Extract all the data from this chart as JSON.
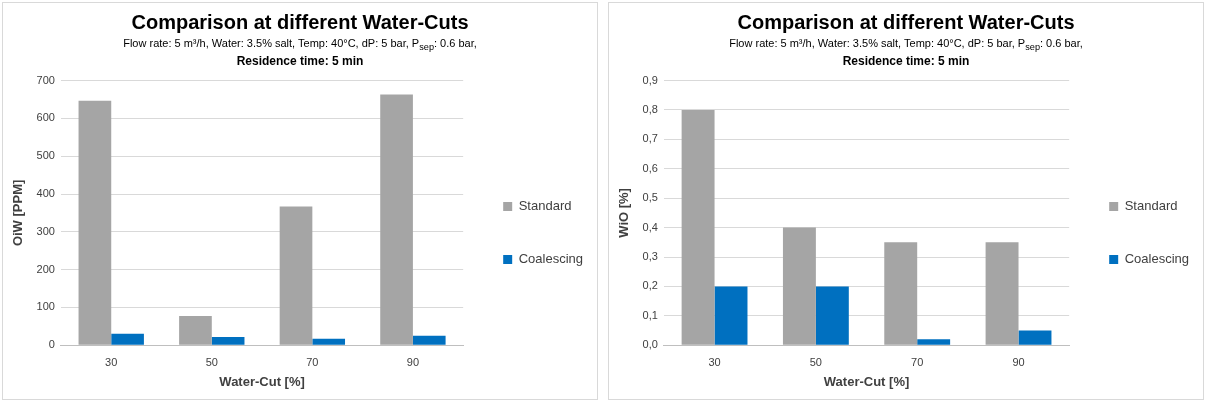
{
  "chart_data": [
    {
      "type": "bar",
      "title": "Comparison at different Water-Cuts",
      "subtitle": "Flow rate: 5 m³/h, Water: 3.5% salt, Temp: 40°C, dP: 5 bar, P$_{sep}$: 0.6 bar,",
      "annotations": [
        "Residence time: 5 min"
      ],
      "xlabel": "Water-Cut [%]",
      "ylabel": "OiW [PPM]",
      "categories": [
        "30",
        "50",
        "70",
        "90"
      ],
      "series": [
        {
          "name": "Standard",
          "color": "#a5a5a5",
          "values": [
            647,
            77,
            367,
            663
          ]
        },
        {
          "name": "Coalescing",
          "color": "#0070c0",
          "values": [
            30,
            22,
            17,
            25
          ]
        }
      ],
      "ylim": [
        0,
        700
      ],
      "yticks": [
        0,
        100,
        200,
        300,
        400,
        500,
        600,
        700
      ],
      "grid": "y",
      "legend": "right"
    },
    {
      "type": "bar",
      "title": "Comparison at different Water-Cuts",
      "subtitle": "Flow rate: 5 m³/h, Water: 3.5% salt, Temp: 40°C, dP: 5 bar, P$_{sep}$: 0.6 bar,",
      "annotations": [
        "Residence time: 5 min"
      ],
      "xlabel": "Water-Cut [%]",
      "ylabel": "WiO [%]",
      "categories": [
        "30",
        "50",
        "70",
        "90"
      ],
      "series": [
        {
          "name": "Standard",
          "color": "#a5a5a5",
          "values": [
            0.8,
            0.4,
            0.35,
            0.35
          ]
        },
        {
          "name": "Coalescing",
          "color": "#0070c0",
          "values": [
            0.2,
            0.2,
            0.02,
            0.05
          ]
        }
      ],
      "ylim": [
        0,
        0.9
      ],
      "yticks": [
        {
          "value": 0,
          "label": "0,0"
        },
        {
          "value": 0.1,
          "label": "0,1"
        },
        {
          "value": 0.2,
          "label": "0,2"
        },
        {
          "value": 0.3,
          "label": "0,3"
        },
        {
          "value": 0.4,
          "label": "0,4"
        },
        {
          "value": 0.5,
          "label": "0,5"
        },
        {
          "value": 0.6,
          "label": "0,6"
        },
        {
          "value": 0.7,
          "label": "0,7"
        },
        {
          "value": 0.8,
          "label": "0,8"
        },
        {
          "value": 0.9,
          "label": "0,9"
        }
      ],
      "grid": "y",
      "legend": "right"
    }
  ]
}
